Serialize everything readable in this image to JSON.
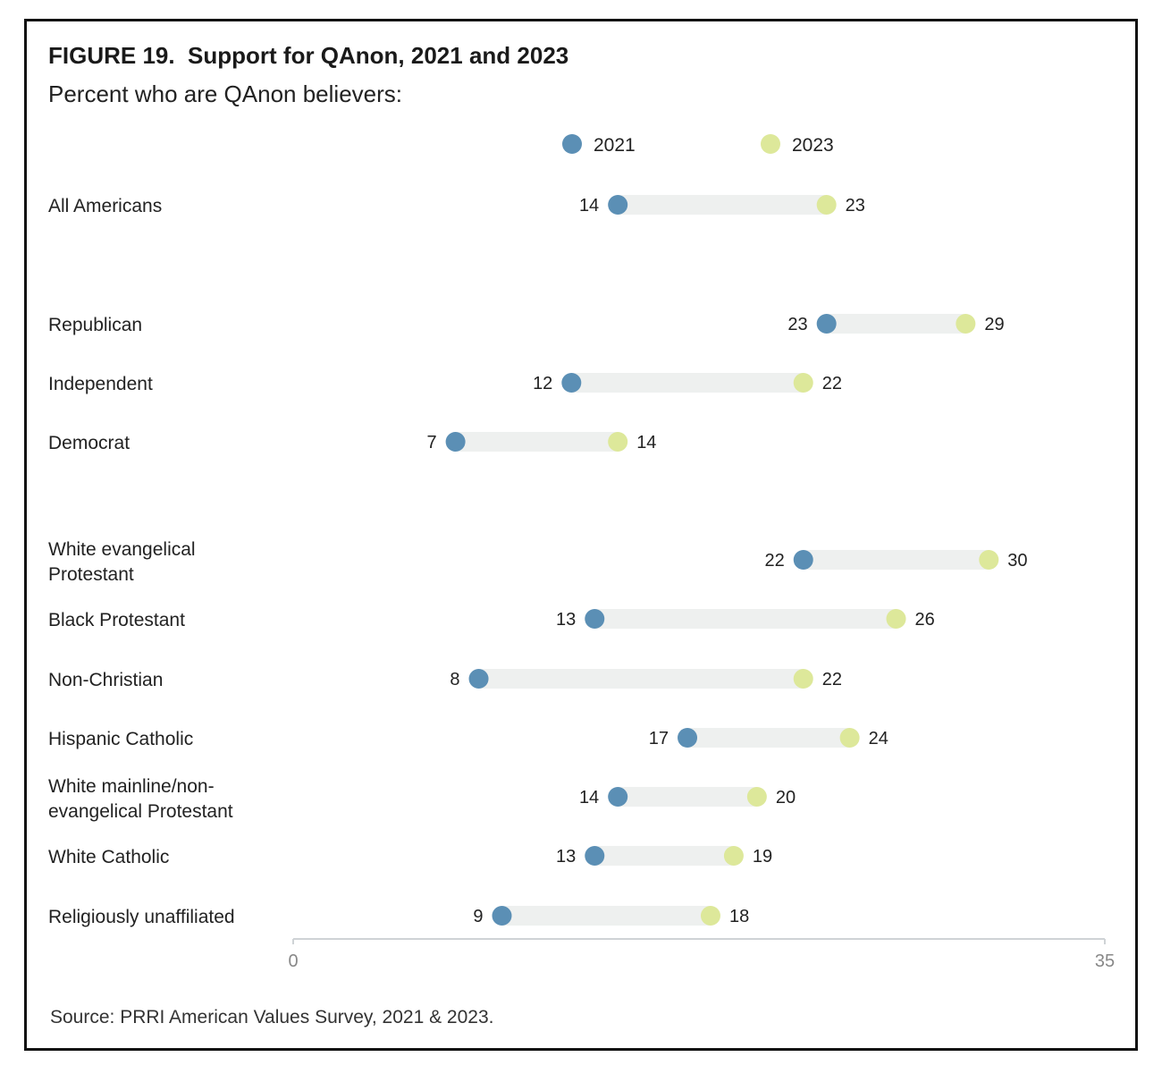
{
  "figure": {
    "title": "FIGURE 19.  Support for QAnon, 2021 and 2023",
    "subtitle": "Percent who are QAnon believers:",
    "source": "Source: PRRI American Values Survey, 2021 & 2023."
  },
  "colors": {
    "series_2021": "#5b8fb5",
    "series_2023": "#dde89a",
    "bar": "#eef0ef",
    "axis": "#cfd3d6"
  },
  "chart_data": {
    "type": "dumbbell",
    "title": "FIGURE 19.  Support for QAnon, 2021 and 2023",
    "subtitle": "Percent who are QAnon believers:",
    "xlim": [
      0,
      35
    ],
    "x_ticks": [
      "0",
      "35"
    ],
    "legend": {
      "placement": "top",
      "entries": [
        "2021",
        "2023"
      ]
    },
    "series": [
      {
        "name": "2021",
        "values": [
          14,
          23,
          12,
          7,
          22,
          13,
          8,
          17,
          14,
          13,
          9
        ]
      },
      {
        "name": "2023",
        "values": [
          23,
          29,
          22,
          14,
          30,
          26,
          22,
          24,
          20,
          19,
          18
        ]
      }
    ],
    "categories": [
      "All Americans",
      "Republican",
      "Independent",
      "Democrat",
      "White evangelical Protestant",
      "Black Protestant",
      "Non-Christian",
      "Hispanic Catholic",
      "White mainline/non-evangelical Protestant",
      "White Catholic",
      "Religiously unaffiliated"
    ],
    "category_lines": [
      [
        "All Americans"
      ],
      [
        "Republican"
      ],
      [
        "Independent"
      ],
      [
        "Democrat"
      ],
      [
        "White evangelical",
        "Protestant"
      ],
      [
        "Black Protestant"
      ],
      [
        "Non-Christian"
      ],
      [
        "Hispanic Catholic"
      ],
      [
        "White mainline/non-",
        "evangelical Protestant"
      ],
      [
        "White Catholic"
      ],
      [
        "Religiously unaffiliated"
      ]
    ]
  }
}
